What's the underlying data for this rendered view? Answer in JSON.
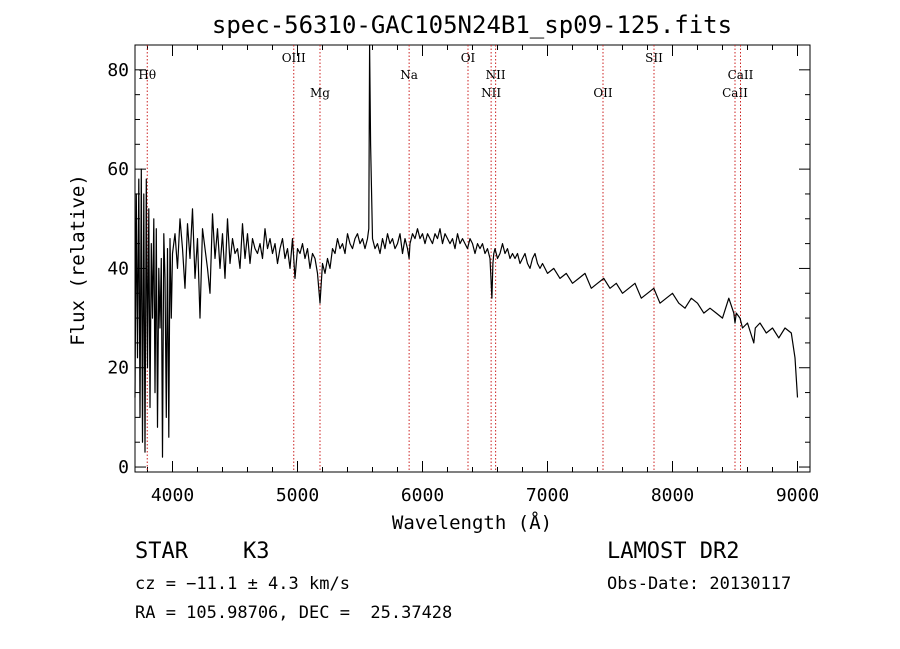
{
  "chart_data": {
    "type": "line",
    "title": "spec-56310-GAC105N24B1_sp09-125.fits",
    "xlabel": "Wavelength (Å)",
    "ylabel": "Flux (relative)",
    "xlim": [
      3700,
      9100
    ],
    "ylim": [
      -1,
      85
    ],
    "xticks": [
      4000,
      5000,
      6000,
      7000,
      8000,
      9000
    ],
    "yticks": [
      0,
      20,
      40,
      60,
      80
    ],
    "x_minor_step": 200,
    "y_minor_step": 5,
    "grid": false,
    "line_color": "#000000",
    "marker_color": "#cc2222",
    "lines": [
      {
        "name": "Hθ",
        "wavelength": 3798,
        "row": 1
      },
      {
        "name": "OIII",
        "wavelength": 4970,
        "row": 0
      },
      {
        "name": "Mg",
        "wavelength": 5180,
        "row": 2
      },
      {
        "name": "Na",
        "wavelength": 5893,
        "row": 1
      },
      {
        "name": "OI",
        "wavelength": 6364,
        "row": 0
      },
      {
        "name": "NII",
        "wavelength": 6549,
        "row": 2
      },
      {
        "name": "NII",
        "wavelength": 6585,
        "row": 1
      },
      {
        "name": "OII",
        "wavelength": 7444,
        "row": 2
      },
      {
        "name": "SII",
        "wavelength": 7852,
        "row": 0
      },
      {
        "name": "CaII",
        "wavelength": 8500,
        "row": 2
      },
      {
        "name": "CaII",
        "wavelength": 8544,
        "row": 1
      }
    ],
    "series": [
      {
        "x": [
          3700,
          3710,
          3720,
          3730,
          3740,
          3750,
          3760,
          3770,
          3780,
          3790,
          3800,
          3810,
          3820,
          3830,
          3840,
          3850,
          3860,
          3870,
          3880,
          3890,
          3900,
          3910,
          3920,
          3930,
          3940,
          3950,
          3960,
          3970,
          3980,
          3990,
          4000,
          4020,
          4040,
          4060,
          4080,
          4100,
          4120,
          4140,
          4160,
          4180,
          4200,
          4220,
          4240,
          4260,
          4280,
          4300,
          4320,
          4340,
          4360,
          4380,
          4400,
          4420,
          4440,
          4460,
          4480,
          4500,
          4520,
          4540,
          4560,
          4580,
          4600,
          4620,
          4640,
          4660,
          4680,
          4700,
          4720,
          4740,
          4760,
          4780,
          4800,
          4820,
          4840,
          4860,
          4880,
          4900,
          4920,
          4940,
          4960,
          4980,
          5000,
          5020,
          5040,
          5060,
          5080,
          5100,
          5120,
          5140,
          5160,
          5180,
          5200,
          5220,
          5240,
          5260,
          5280,
          5300,
          5320,
          5340,
          5360,
          5380,
          5400,
          5420,
          5440,
          5460,
          5480,
          5500,
          5520,
          5540,
          5560,
          5570,
          5577,
          5585,
          5600,
          5620,
          5640,
          5660,
          5680,
          5700,
          5720,
          5740,
          5760,
          5780,
          5800,
          5820,
          5840,
          5860,
          5880,
          5893,
          5900,
          5920,
          5940,
          5960,
          5980,
          6000,
          6020,
          6040,
          6060,
          6080,
          6100,
          6120,
          6140,
          6160,
          6180,
          6200,
          6220,
          6240,
          6260,
          6280,
          6300,
          6320,
          6340,
          6360,
          6380,
          6400,
          6420,
          6440,
          6460,
          6480,
          6500,
          6520,
          6540,
          6555,
          6563,
          6570,
          6580,
          6600,
          6620,
          6640,
          6660,
          6680,
          6700,
          6720,
          6740,
          6760,
          6780,
          6800,
          6820,
          6840,
          6860,
          6880,
          6900,
          6920,
          6940,
          6960,
          6980,
          7000,
          7050,
          7100,
          7150,
          7200,
          7250,
          7300,
          7350,
          7400,
          7450,
          7500,
          7550,
          7600,
          7650,
          7700,
          7750,
          7800,
          7850,
          7900,
          7950,
          8000,
          8050,
          8100,
          8150,
          8200,
          8250,
          8300,
          8350,
          8400,
          8450,
          8490,
          8500,
          8510,
          8540,
          8560,
          8600,
          8650,
          8662,
          8700,
          8750,
          8800,
          8850,
          8900,
          8950,
          8980,
          9000
        ],
        "y": [
          14,
          55,
          22,
          58,
          10,
          60,
          5,
          55,
          3,
          58,
          20,
          52,
          12,
          45,
          30,
          50,
          15,
          48,
          8,
          40,
          28,
          42,
          2,
          47,
          38,
          10,
          44,
          6,
          46,
          30,
          43,
          47,
          40,
          50,
          44,
          36,
          49,
          42,
          52,
          38,
          46,
          30,
          48,
          44,
          40,
          35,
          51,
          42,
          48,
          40,
          47,
          38,
          50,
          41,
          46,
          43,
          44,
          40,
          49,
          42,
          47,
          41,
          46,
          44,
          43,
          45,
          42,
          48,
          44,
          46,
          43,
          45,
          41,
          44,
          46,
          42,
          44,
          40,
          46,
          38,
          44,
          43,
          45,
          42,
          44,
          40,
          43,
          42,
          39,
          33,
          41,
          39,
          42,
          40,
          44,
          43,
          46,
          44,
          45,
          43,
          47,
          45,
          44,
          46,
          47,
          45,
          46,
          44,
          46,
          48,
          85,
          65,
          46,
          44,
          45,
          43,
          46,
          44,
          47,
          45,
          46,
          44,
          45,
          47,
          43,
          46,
          44,
          42,
          45,
          47,
          46,
          48,
          46,
          47,
          45,
          47,
          46,
          45,
          47,
          46,
          48,
          45,
          47,
          46,
          45,
          46,
          44,
          47,
          45,
          46,
          45,
          44,
          46,
          45,
          43,
          45,
          44,
          45,
          43,
          44,
          42,
          34,
          41,
          43,
          44,
          42,
          43,
          45,
          43,
          44,
          42,
          43,
          42,
          43,
          41,
          42,
          43,
          41,
          40,
          42,
          43,
          41,
          40,
          41,
          40,
          39,
          40,
          38,
          39,
          37,
          38,
          39,
          36,
          37,
          38,
          36,
          37,
          35,
          36,
          37,
          34,
          35,
          36,
          33,
          34,
          35,
          33,
          32,
          34,
          33,
          31,
          32,
          31,
          30,
          34,
          31,
          29,
          31,
          30,
          28,
          29,
          25,
          28,
          29,
          27,
          28,
          26,
          28,
          27,
          22,
          14
        ]
      }
    ]
  },
  "info": {
    "object_type": "STAR",
    "subclass": "K3",
    "survey": "LAMOST DR2",
    "redshift": "cz = −11.1 ± 4.3 km/s",
    "obs_date": "Obs-Date: 20130117",
    "coords": "RA = 105.98706, DEC =  25.37428"
  }
}
